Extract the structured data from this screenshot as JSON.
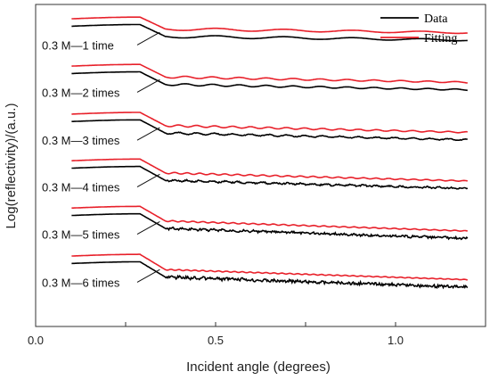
{
  "chart_data": {
    "type": "line",
    "xlabel": "Incident angle (degrees)",
    "ylabel": "Log(reflectivity)/(a.u.)",
    "xlim": [
      0.0,
      1.25
    ],
    "xticks": [
      "0.0",
      "0.5",
      "1.0"
    ],
    "ytick_labels": "none",
    "grid": false,
    "legend": {
      "placement": "top-right",
      "entries": [
        {
          "name": "Data",
          "color": "#000000"
        },
        {
          "name": "Fitting",
          "color": "#e8202a"
        }
      ]
    },
    "curves": [
      {
        "label": "0.3 M—1 time",
        "plateau": 0.38,
        "end_level": 0.79,
        "fringe_amp": 0.04,
        "fringe_period": 0.19,
        "noise": 0.0
      },
      {
        "label": "0.3 M—2 times",
        "plateau": 1.78,
        "end_level": 2.24,
        "fringe_amp": 0.03,
        "fringe_period": 0.075,
        "noise": 0.0
      },
      {
        "label": "0.3 M—3 times",
        "plateau": 3.2,
        "end_level": 3.7,
        "fringe_amp": 0.028,
        "fringe_period": 0.05,
        "noise": 0.002
      },
      {
        "label": "0.3 M—4 times",
        "plateau": 4.58,
        "end_level": 5.12,
        "fringe_amp": 0.022,
        "fringe_period": 0.035,
        "noise": 0.004
      },
      {
        "label": "0.3 M—5 times",
        "plateau": 5.98,
        "end_level": 6.58,
        "fringe_amp": 0.018,
        "fringe_period": 0.028,
        "noise": 0.006
      },
      {
        "label": "0.3 M—6 times",
        "plateau": 7.4,
        "end_level": 8.0,
        "fringe_amp": 0.015,
        "fringe_period": 0.022,
        "noise": 0.008
      }
    ],
    "series_x_range": [
      0.1,
      1.2
    ],
    "fit_offset": -0.22
  },
  "colors": {
    "data": "#000000",
    "fitting": "#e8202a",
    "axis": "#333333"
  }
}
